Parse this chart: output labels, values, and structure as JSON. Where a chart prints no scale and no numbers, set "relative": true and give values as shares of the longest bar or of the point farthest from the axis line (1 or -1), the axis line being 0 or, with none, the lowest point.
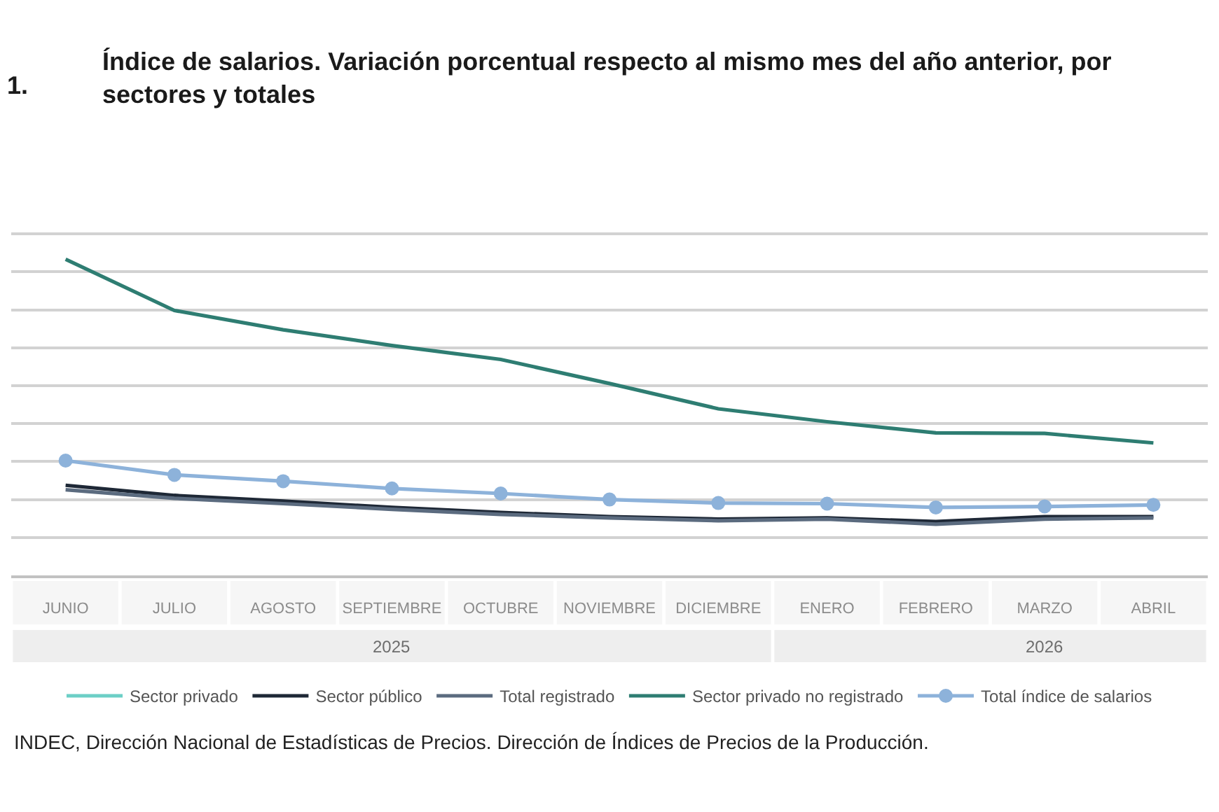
{
  "chart_data": {
    "type": "line",
    "title": "Índice de salarios. Variación porcentual respecto al mismo mes del año anterior, por sectores y totales",
    "categories": [
      "JUNIO",
      "JULIO",
      "AGOSTO",
      "SEPTIEMBRE",
      "OCTUBRE",
      "NOVIEMBRE",
      "DICIEMBRE",
      "ENERO",
      "FEBRERO",
      "MARZO",
      "ABRIL"
    ],
    "relative": true,
    "grid": "y",
    "legend": "bottom",
    "series": [
      {
        "name": "Sector privado",
        "color": "#6ccfc6",
        "values": [
          null,
          null,
          null,
          null,
          null,
          null,
          null,
          null,
          null,
          null,
          null
        ]
      },
      {
        "name": "Sector público",
        "color": "#1e2836",
        "values": [
          0.285,
          0.253,
          0.235,
          0.215,
          0.199,
          0.186,
          0.178,
          0.182,
          0.17,
          0.186,
          0.186
        ]
      },
      {
        "name": "Total registrado",
        "color": "#5b6b7f",
        "values": [
          0.271,
          0.244,
          0.227,
          0.209,
          0.193,
          0.182,
          0.173,
          0.178,
          0.162,
          0.178,
          0.182
        ]
      },
      {
        "name": "Sector privado no registrado",
        "color": "#2e7d72",
        "values": [
          1.0,
          0.838,
          0.777,
          0.727,
          0.683,
          0.607,
          0.527,
          0.486,
          0.451,
          0.449,
          0.419
        ]
      },
      {
        "name": "Total índice de salarios",
        "color": "#8db2da",
        "marker": "circle",
        "values": [
          0.363,
          0.318,
          0.298,
          0.275,
          0.259,
          0.24,
          0.229,
          0.227,
          0.215,
          0.218,
          0.223
        ]
      }
    ],
    "annotations": [
      "1.",
      "2025",
      "2026",
      "INDEC, Dirección Nacional de Estadísticas de Precios. Dirección de Índices de Precios de la Producción."
    ]
  }
}
